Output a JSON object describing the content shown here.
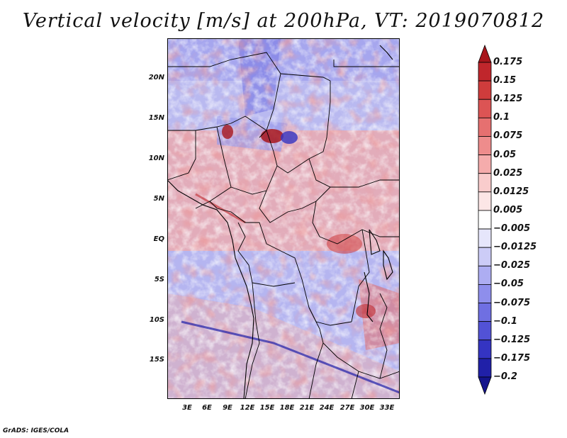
{
  "title": "Vertical velocity [m/s] at 200hPa, VT: 2019070812",
  "credit": "GrADS: IGES/COLA",
  "map": {
    "lat_labels": [
      "20N",
      "15N",
      "10N",
      "5N",
      "EQ",
      "5S",
      "10S",
      "15S"
    ],
    "lon_labels": [
      "3E",
      "6E",
      "9E",
      "12E",
      "15E",
      "18E",
      "21E",
      "24E",
      "27E",
      "30E",
      "33E"
    ]
  },
  "colorbar": {
    "labels": [
      "0.175",
      "0.15",
      "0.125",
      "0.1",
      "0.075",
      "0.05",
      "0.025",
      "0.0125",
      "0.005",
      "−0.005",
      "−0.0125",
      "−0.025",
      "−0.05",
      "−0.075",
      "−0.1",
      "−0.125",
      "−0.175",
      "−0.2"
    ],
    "colors": [
      "#a8161c",
      "#c0262c",
      "#cf3c3c",
      "#dc5454",
      "#e67070",
      "#ee8c8c",
      "#f5acac",
      "#f9cccc",
      "#fce6e6",
      "#ffffff",
      "#e6e6fb",
      "#ccccf7",
      "#adadf2",
      "#8e8eec",
      "#6f6fe2",
      "#5252d6",
      "#3434c2",
      "#2020a8",
      "#14148c"
    ]
  }
}
